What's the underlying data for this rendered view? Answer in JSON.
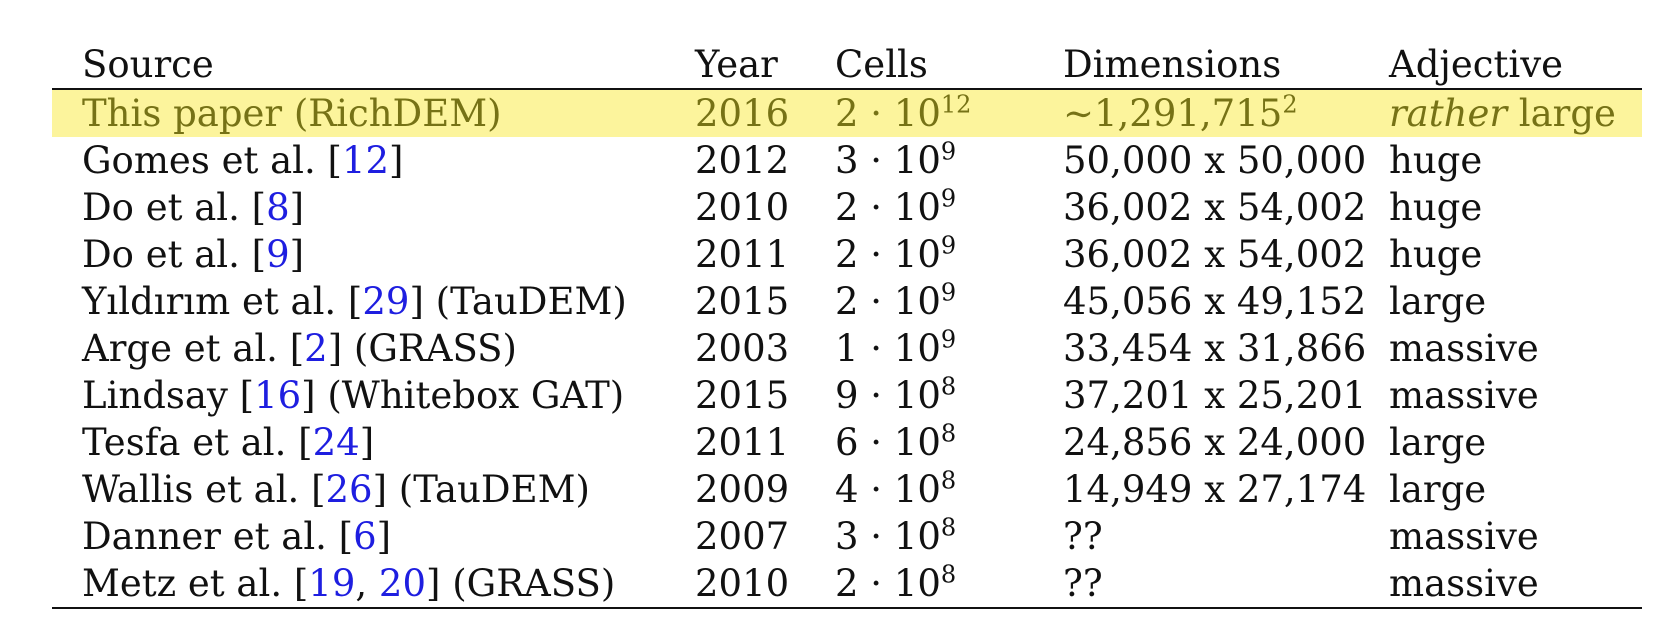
{
  "headers": {
    "source": "Source",
    "year": "Year",
    "cells": "Cells",
    "dimensions": "Dimensions",
    "adjective": "Adjective"
  },
  "highlight_color": "#fcf49c",
  "highlight_text_color": "#767216",
  "link_color": "#1e1ee0",
  "rows": [
    {
      "name": "This paper (RichDEM)",
      "refs": [],
      "suffix": "",
      "year": "2016",
      "cells_base": "2 · 10",
      "cells_exp": "12",
      "dimensions": "∼1,291,715",
      "dim_exp": "2",
      "adjective_em": "rather",
      "adjective": " large",
      "highlight": true
    },
    {
      "name": "Gomes et al. [",
      "refs": [
        "12"
      ],
      "suffix": "]",
      "year": "2012",
      "cells_base": "3 · 10",
      "cells_exp": "9",
      "dimensions": "50,000 x 50,000",
      "dim_exp": "",
      "adjective_em": "",
      "adjective": "huge"
    },
    {
      "name": "Do et al. [",
      "refs": [
        "8"
      ],
      "suffix": "]",
      "year": "2010",
      "cells_base": "2 · 10",
      "cells_exp": "9",
      "dimensions": "36,002 x 54,002",
      "dim_exp": "",
      "adjective_em": "",
      "adjective": "huge"
    },
    {
      "name": "Do et al. [",
      "refs": [
        "9"
      ],
      "suffix": "]",
      "year": "2011",
      "cells_base": "2 · 10",
      "cells_exp": "9",
      "dimensions": "36,002 x 54,002",
      "dim_exp": "",
      "adjective_em": "",
      "adjective": "huge"
    },
    {
      "name": "Yıldırım et al. [",
      "refs": [
        "29"
      ],
      "suffix": "] (TauDEM)",
      "year": "2015",
      "cells_base": "2 · 10",
      "cells_exp": "9",
      "dimensions": "45,056 x 49,152",
      "dim_exp": "",
      "adjective_em": "",
      "adjective": "large"
    },
    {
      "name": "Arge et al. [",
      "refs": [
        "2"
      ],
      "suffix": "] (GRASS)",
      "year": "2003",
      "cells_base": "1 · 10",
      "cells_exp": "9",
      "dimensions": "33,454 x 31,866",
      "dim_exp": "",
      "adjective_em": "",
      "adjective": "massive"
    },
    {
      "name": "Lindsay [",
      "refs": [
        "16"
      ],
      "suffix": "] (Whitebox GAT)",
      "year": "2015",
      "cells_base": "9 · 10",
      "cells_exp": "8",
      "dimensions": "37,201 x 25,201",
      "dim_exp": "",
      "adjective_em": "",
      "adjective": "massive"
    },
    {
      "name": "Tesfa et al. [",
      "refs": [
        "24"
      ],
      "suffix": "]",
      "year": "2011",
      "cells_base": "6 · 10",
      "cells_exp": "8",
      "dimensions": "24,856 x 24,000",
      "dim_exp": "",
      "adjective_em": "",
      "adjective": "large"
    },
    {
      "name": "Wallis et al. [",
      "refs": [
        "26"
      ],
      "suffix": "] (TauDEM)",
      "year": "2009",
      "cells_base": "4 · 10",
      "cells_exp": "8",
      "dimensions": "14,949 x 27,174",
      "dim_exp": "",
      "adjective_em": "",
      "adjective": "large"
    },
    {
      "name": "Danner et al. [",
      "refs": [
        "6"
      ],
      "suffix": "]",
      "year": "2007",
      "cells_base": "3 · 10",
      "cells_exp": "8",
      "dimensions": "??",
      "dim_exp": "",
      "adjective_em": "",
      "adjective": "massive"
    },
    {
      "name": "Metz et al. [",
      "refs": [
        "19",
        "20"
      ],
      "suffix": "] (GRASS)",
      "year": "2010",
      "cells_base": "2 · 10",
      "cells_exp": "8",
      "dimensions": "??",
      "dim_exp": "",
      "adjective_em": "",
      "adjective": "massive"
    }
  ]
}
